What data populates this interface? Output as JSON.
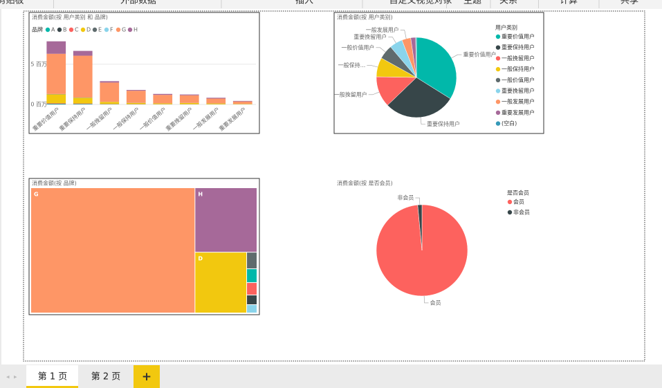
{
  "ribbon": [
    "剪贴板",
    "外部数据",
    "插入",
    "自定义视觉对象",
    "主题",
    "关系",
    "计算",
    "共享"
  ],
  "chart_data": [
    {
      "type": "stacked_bar",
      "title": "消费金额(按 用户类别 和 品牌)",
      "legend_title": "品牌",
      "categories": [
        "重要价值用户",
        "重要保持用户",
        "一般挽留用户",
        "一般保持用户",
        "一般价值用户",
        "重要挽留用户",
        "一般发展用户",
        "重要发展用户"
      ],
      "series": [
        {
          "name": "A",
          "color": "#01B8AA",
          "values": [
            50000,
            40000,
            20000,
            15000,
            10000,
            10000,
            8000,
            5000
          ]
        },
        {
          "name": "B",
          "color": "#374649",
          "values": [
            40000,
            30000,
            15000,
            10000,
            8000,
            8000,
            6000,
            4000
          ]
        },
        {
          "name": "C",
          "color": "#FD625E",
          "values": [
            60000,
            50000,
            20000,
            15000,
            10000,
            10000,
            8000,
            5000
          ]
        },
        {
          "name": "D",
          "color": "#F2C80F",
          "values": [
            1100000,
            700000,
            250000,
            150000,
            100000,
            150000,
            100000,
            50000
          ]
        },
        {
          "name": "E",
          "color": "#5F6B6D",
          "values": [
            30000,
            25000,
            10000,
            8000,
            6000,
            6000,
            5000,
            3000
          ]
        },
        {
          "name": "F",
          "color": "#8AD4EB",
          "values": [
            20000,
            15000,
            8000,
            6000,
            5000,
            5000,
            4000,
            2000
          ]
        },
        {
          "name": "G",
          "color": "#FE9666",
          "values": [
            5000000,
            5200000,
            2400000,
            1500000,
            1050000,
            950000,
            600000,
            300000
          ]
        },
        {
          "name": "H",
          "color": "#A66999",
          "values": [
            1550000,
            600000,
            170000,
            100000,
            120000,
            100000,
            100000,
            70000
          ]
        }
      ],
      "ylim": [
        0,
        8000000
      ],
      "yticks": [
        {
          "value": 0,
          "label": "0 百万"
        },
        {
          "value": 5000000,
          "label": "5 百万"
        }
      ],
      "grid": true
    },
    {
      "type": "pie",
      "title": "消费金额(按 用户类别)",
      "legend_title": "用户类别",
      "categories": [
        "重要价值用户",
        "重要保持用户",
        "一般挽留用户",
        "一般保持用户",
        "一般价值用户",
        "重要挽留用户",
        "一般发展用户",
        "重要发展用户",
        "(空白)"
      ],
      "values": [
        34,
        29,
        12.5,
        7.8,
        5.8,
        5.3,
        3.6,
        2.0,
        0.3
      ],
      "colors": [
        "#01B8AA",
        "#374649",
        "#FD625E",
        "#F2C80F",
        "#5F6B6D",
        "#8AD4EB",
        "#FE9666",
        "#A66999",
        "#3599B8"
      ],
      "slice_labels": [
        "重要价值用户",
        "重要保持用户",
        "一般挽留用户",
        "一般保持...",
        "一般价值用户",
        "重要挽留用户",
        "一般发展用户",
        null,
        null
      ]
    },
    {
      "type": "treemap",
      "title": "消费金额(按 品牌)",
      "categories": [
        "G",
        "H",
        "D",
        "E",
        "A",
        "C",
        "B",
        "F"
      ],
      "values": [
        72,
        14,
        11,
        0.6,
        0.5,
        0.45,
        0.35,
        0.3
      ],
      "colors": [
        "#FE9666",
        "#A66999",
        "#F2C80F",
        "#5F6B6D",
        "#01B8AA",
        "#FD625E",
        "#374649",
        "#8AD4EB"
      ]
    },
    {
      "type": "pie",
      "title": "消费金额(按 是否会员)",
      "legend_title": "是否会员",
      "categories": [
        "会员",
        "非会员"
      ],
      "values": [
        98.5,
        1.5
      ],
      "colors": [
        "#FD625E",
        "#374649"
      ],
      "slice_labels": [
        "会员",
        "非会员"
      ]
    }
  ],
  "tabs": [
    "第 1 页",
    "第 2 页",
    "+"
  ]
}
